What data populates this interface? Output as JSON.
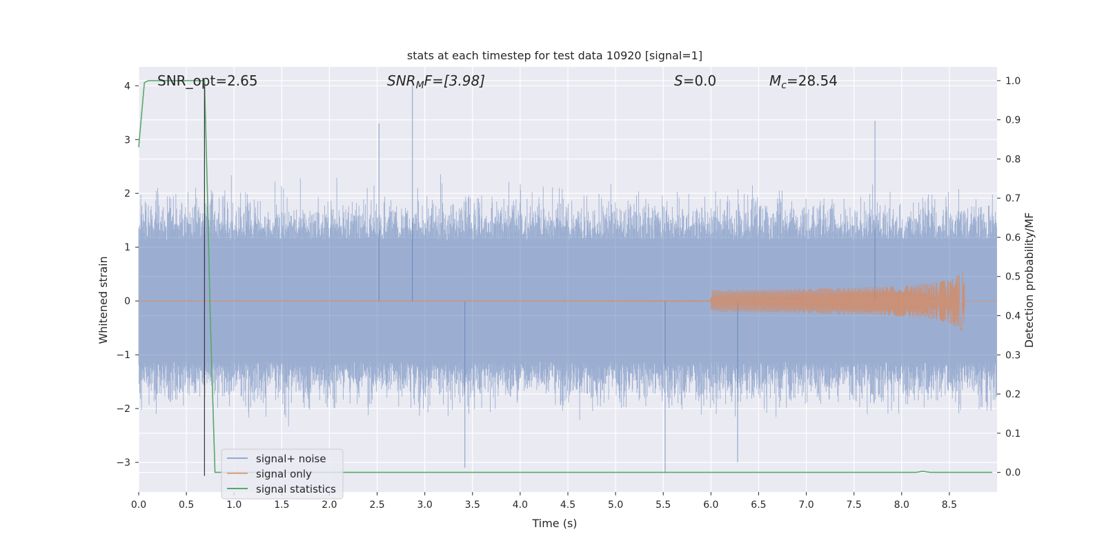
{
  "chart_data": {
    "type": "line",
    "title": "stats at each timestep for test data 10920 [signal=1]",
    "xlabel": "Time (s)",
    "ylabel": "Whitened strain",
    "y2label": "Detection probability/MF",
    "xlim": [
      0.0,
      9.0
    ],
    "ylim": [
      -3.55,
      4.35
    ],
    "y2lim": [
      -0.05,
      1.035
    ],
    "x_ticks": [
      0.0,
      0.5,
      1.0,
      1.5,
      2.0,
      2.5,
      3.0,
      3.5,
      4.0,
      4.5,
      5.0,
      5.5,
      6.0,
      6.5,
      7.0,
      7.5,
      8.0,
      8.5
    ],
    "x_tick_labels": [
      "0.0",
      "0.5",
      "1.0",
      "1.5",
      "2.0",
      "2.5",
      "3.0",
      "3.5",
      "4.0",
      "4.5",
      "5.0",
      "5.5",
      "6.0",
      "6.5",
      "7.0",
      "7.5",
      "8.0",
      "8.5"
    ],
    "y_ticks": [
      -3,
      -2,
      -1,
      0,
      1,
      2,
      3,
      4
    ],
    "y_tick_labels": [
      "−3",
      "−2",
      "−1",
      "0",
      "1",
      "2",
      "3",
      "4"
    ],
    "y2_ticks": [
      0.0,
      0.1,
      0.2,
      0.3,
      0.4,
      0.5,
      0.6,
      0.7,
      0.8,
      0.9,
      1.0
    ],
    "y2_tick_labels": [
      "0.0",
      "0.1",
      "0.2",
      "0.3",
      "0.4",
      "0.5",
      "0.6",
      "0.7",
      "0.8",
      "0.9",
      "1.0"
    ],
    "grid": true,
    "legend_position": "lower-left",
    "legend": [
      "signal+ noise",
      "signal only",
      "signal statistics"
    ],
    "annotations": {
      "snr_opt": "SNR_opt=2.65",
      "snr_mf_symbol": "SNR",
      "snr_mf_sub": "M",
      "snr_mf_value": "F=[3.98]",
      "s_symbol": "S",
      "s_value": "=0.0",
      "mc_symbol": "M",
      "mc_sub": "c",
      "mc_value": "=28.54"
    },
    "marker_time": 0.69,
    "series": [
      {
        "name": "signal+ noise",
        "color": "#4c72b0",
        "description_values": "whitened noisy strain, roughly uniform amplitude ~1.5 with peaks up to 4.0 and down to -3.2",
        "time_range": [
          0.0,
          9.0
        ],
        "typical_amplitude": 1.5,
        "max": 4.0,
        "min": -3.2
      },
      {
        "name": "signal only",
        "color": "#dd8452",
        "chirp_end_time": 8.66,
        "peak_amplitude": 0.55
      },
      {
        "name": "signal statistics",
        "color": "#55a868",
        "axis": "right",
        "x": [
          0.0,
          0.06,
          0.1,
          0.2,
          0.3,
          0.4,
          0.5,
          0.6,
          0.69,
          0.72,
          0.75,
          0.8,
          0.85,
          1.0,
          2.0,
          3.0,
          4.0,
          5.0,
          6.0,
          7.0,
          7.5,
          8.0,
          8.15,
          8.22,
          8.3,
          8.5,
          8.95
        ],
        "y": [
          0.83,
          0.995,
          1.0,
          1.0,
          1.0,
          1.0,
          1.0,
          1.0,
          1.0,
          0.72,
          0.4,
          0.0,
          0.0,
          0.0,
          0.0,
          0.0,
          0.0,
          0.0,
          0.0,
          0.0,
          0.0,
          0.0,
          0.0,
          0.003,
          0.0,
          0.0,
          0.0
        ]
      }
    ]
  }
}
